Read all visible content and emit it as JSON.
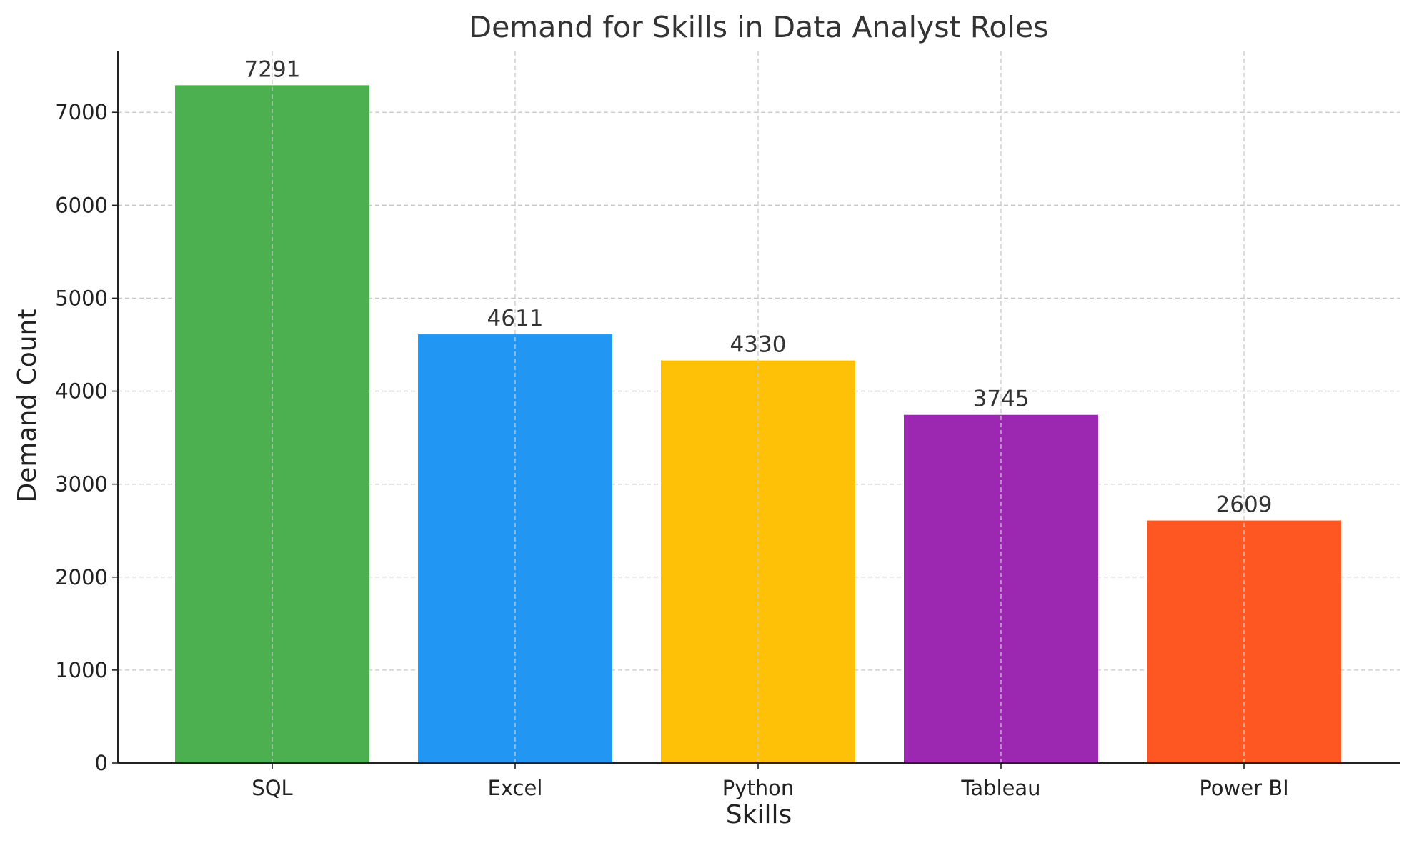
{
  "chart_data": {
    "type": "bar",
    "title": "Demand for Skills in Data Analyst Roles",
    "xlabel": "Skills",
    "ylabel": "Demand Count",
    "categories": [
      "SQL",
      "Excel",
      "Python",
      "Tableau",
      "Power BI"
    ],
    "values": [
      7291,
      4611,
      4330,
      3745,
      2609
    ],
    "value_labels": [
      "7291",
      "4611",
      "4330",
      "3745",
      "2609"
    ],
    "colors": [
      "#4CAF50",
      "#2196F3",
      "#FFC107",
      "#9C27B0",
      "#FF5722"
    ],
    "ylim": [
      0,
      7655
    ],
    "yticks": [
      0,
      1000,
      2000,
      3000,
      4000,
      5000,
      6000,
      7000
    ],
    "ytick_labels": [
      "0",
      "1000",
      "2000",
      "3000",
      "4000",
      "5000",
      "6000",
      "7000"
    ],
    "grid": true,
    "legend": false
  }
}
